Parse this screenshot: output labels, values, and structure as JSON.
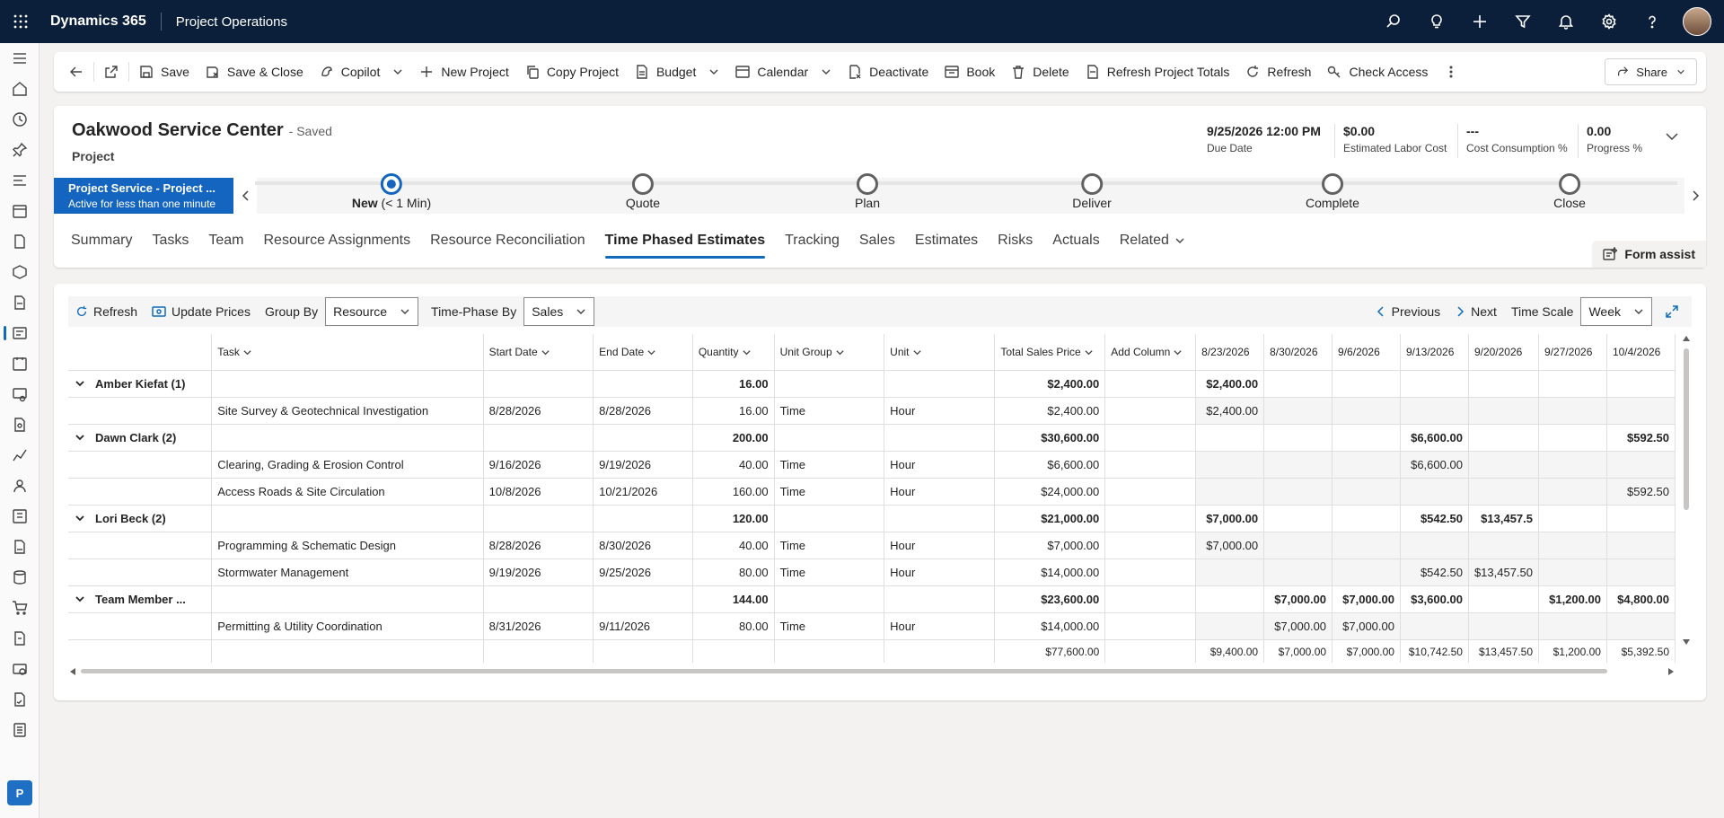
{
  "app": {
    "name": "Dynamics 365",
    "module": "Project Operations"
  },
  "topbar_icons": [
    "search-icon",
    "lightbulb-icon",
    "plus-icon",
    "filter-icon",
    "bell-icon",
    "settings-icon",
    "help-icon"
  ],
  "commands": {
    "save": "Save",
    "save_close": "Save & Close",
    "copilot": "Copilot",
    "new_project": "New Project",
    "copy_project": "Copy Project",
    "budget": "Budget",
    "calendar": "Calendar",
    "deactivate": "Deactivate",
    "book": "Book",
    "delete": "Delete",
    "refresh_totals": "Refresh Project Totals",
    "refresh": "Refresh",
    "check_access": "Check Access",
    "share": "Share"
  },
  "record": {
    "title": "Oakwood Service Center",
    "saved": "- Saved",
    "entity": "Project",
    "fields": [
      {
        "value": "9/25/2026 12:00 PM",
        "label": "Due Date"
      },
      {
        "value": "$0.00",
        "label": "Estimated Labor Cost"
      },
      {
        "value": "---",
        "label": "Cost Consumption %"
      },
      {
        "value": "0.00",
        "label": "Progress %"
      }
    ]
  },
  "bpf": {
    "stage_name": "Project Service - Project ...",
    "stage_status": "Active for less than one minute",
    "stages": [
      "New",
      "Quote",
      "Plan",
      "Deliver",
      "Complete",
      "Close"
    ],
    "active_suffix": "(< 1 Min)"
  },
  "tabs": [
    "Summary",
    "Tasks",
    "Team",
    "Resource Assignments",
    "Resource Reconciliation",
    "Time Phased Estimates",
    "Tracking",
    "Sales",
    "Estimates",
    "Risks",
    "Actuals",
    "Related"
  ],
  "selected_tab": "Time Phased Estimates",
  "form_assist": "Form assist",
  "grid_toolbar": {
    "refresh": "Refresh",
    "update_prices": "Update Prices",
    "group_by_label": "Group By",
    "group_by_value": "Resource",
    "time_phase_label": "Time-Phase By",
    "time_phase_value": "Sales",
    "previous": "Previous",
    "next": "Next",
    "time_scale_label": "Time Scale",
    "time_scale_value": "Week"
  },
  "grid": {
    "columns": [
      "",
      "Task",
      "Start Date",
      "End Date",
      "Quantity",
      "Unit Group",
      "Unit",
      "Total Sales Price",
      "Add Column"
    ],
    "week_columns": [
      "8/23/2026",
      "8/30/2026",
      "9/6/2026",
      "9/13/2026",
      "9/20/2026",
      "9/27/2026",
      "10/4/2026"
    ],
    "rows": [
      {
        "type": "group",
        "name": "Amber Kiefat (1)",
        "qty": "16.00",
        "total": "$2,400.00",
        "weeks": [
          "$2,400.00",
          "",
          "",
          "",
          "",
          "",
          ""
        ]
      },
      {
        "type": "task",
        "task": "Site Survey & Geotechnical Investigation",
        "start": "8/28/2026",
        "end": "8/28/2026",
        "qty": "16.00",
        "unit_group": "Time",
        "unit": "Hour",
        "total": "$2,400.00",
        "weeks": [
          "$2,400.00",
          "",
          "",
          "",
          "",
          "",
          ""
        ]
      },
      {
        "type": "group",
        "name": "Dawn Clark (2)",
        "qty": "200.00",
        "total": "$30,600.00",
        "weeks": [
          "",
          "",
          "",
          "$6,600.00",
          "",
          "",
          "$592.50"
        ]
      },
      {
        "type": "task",
        "task": "Clearing, Grading & Erosion Control",
        "start": "9/16/2026",
        "end": "9/19/2026",
        "qty": "40.00",
        "unit_group": "Time",
        "unit": "Hour",
        "total": "$6,600.00",
        "weeks": [
          "",
          "",
          "",
          "$6,600.00",
          "",
          "",
          ""
        ]
      },
      {
        "type": "task",
        "task": "Access Roads & Site Circulation",
        "start": "10/8/2026",
        "end": "10/21/2026",
        "qty": "160.00",
        "unit_group": "Time",
        "unit": "Hour",
        "total": "$24,000.00",
        "weeks": [
          "",
          "",
          "",
          "",
          "",
          "",
          "$592.50"
        ]
      },
      {
        "type": "group",
        "name": "Lori Beck (2)",
        "qty": "120.00",
        "total": "$21,000.00",
        "weeks": [
          "$7,000.00",
          "",
          "",
          "$542.50",
          "$13,457.5",
          "",
          ""
        ]
      },
      {
        "type": "task",
        "task": "Programming & Schematic Design",
        "start": "8/28/2026",
        "end": "8/30/2026",
        "qty": "40.00",
        "unit_group": "Time",
        "unit": "Hour",
        "total": "$7,000.00",
        "weeks": [
          "$7,000.00",
          "",
          "",
          "",
          "",
          "",
          ""
        ]
      },
      {
        "type": "task",
        "task": "Stormwater Management",
        "start": "9/19/2026",
        "end": "9/25/2026",
        "qty": "80.00",
        "unit_group": "Time",
        "unit": "Hour",
        "total": "$14,000.00",
        "weeks": [
          "",
          "",
          "",
          "$542.50",
          "$13,457.50",
          "",
          ""
        ]
      },
      {
        "type": "group",
        "name": "Team Member ...",
        "qty": "144.00",
        "total": "$23,600.00",
        "weeks": [
          "",
          "$7,000.00",
          "$7,000.00",
          "$3,600.00",
          "",
          "$1,200.00",
          "$4,800.00"
        ]
      },
      {
        "type": "task",
        "task": "Permitting & Utility Coordination",
        "start": "8/31/2026",
        "end": "9/11/2026",
        "qty": "80.00",
        "unit_group": "Time",
        "unit": "Hour",
        "total": "$14,000.00",
        "weeks": [
          "",
          "$7,000.00",
          "$7,000.00",
          "",
          "",
          "",
          ""
        ]
      }
    ],
    "totals": {
      "total": "$77,600.00",
      "weeks": [
        "$9,400.00",
        "$7,000.00",
        "$7,000.00",
        "$10,742.50",
        "$13,457.50",
        "$1,200.00",
        "$5,392.50"
      ]
    }
  },
  "nav_badge": "P"
}
